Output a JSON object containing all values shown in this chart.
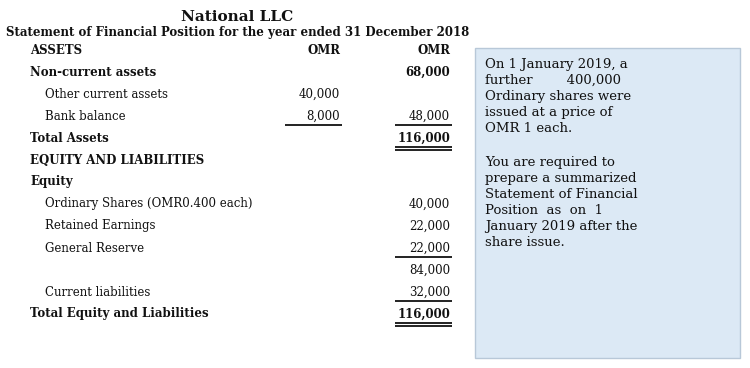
{
  "title": "National LLC",
  "subtitle": "Statement of Financial Position for the year ended 31 December 2018",
  "bg_color": "#ffffff",
  "sidebar_bg": "#dce9f5",
  "sidebar_border": "#b8c8d8",
  "rows": [
    {
      "label": "ASSETS",
      "col1": "OMR",
      "col2": "OMR",
      "bold": true,
      "ul1": false,
      "ul2": false,
      "double2": false,
      "indent": false
    },
    {
      "label": "Non-current assets",
      "col1": "",
      "col2": "68,000",
      "bold": true,
      "ul1": false,
      "ul2": false,
      "double2": false,
      "indent": false
    },
    {
      "label": "Other current assets",
      "col1": "40,000",
      "col2": "",
      "bold": false,
      "ul1": false,
      "ul2": false,
      "double2": false,
      "indent": true
    },
    {
      "label": "Bank balance",
      "col1": "8,000",
      "col2": "48,000",
      "bold": false,
      "ul1": true,
      "ul2": true,
      "double2": false,
      "indent": true
    },
    {
      "label": "Total Assets",
      "col1": "",
      "col2": "116,000",
      "bold": true,
      "ul1": false,
      "ul2": true,
      "double2": true,
      "indent": false
    },
    {
      "label": "EQUITY AND LIABILITIES",
      "col1": "",
      "col2": "",
      "bold": true,
      "ul1": false,
      "ul2": false,
      "double2": false,
      "indent": false
    },
    {
      "label": "Equity",
      "col1": "",
      "col2": "",
      "bold": true,
      "ul1": false,
      "ul2": false,
      "double2": false,
      "indent": false
    },
    {
      "label": "Ordinary Shares (OMR0.400 each)",
      "col1": "",
      "col2": "40,000",
      "bold": false,
      "ul1": false,
      "ul2": false,
      "double2": false,
      "indent": true
    },
    {
      "label": "Retained Earnings",
      "col1": "",
      "col2": "22,000",
      "bold": false,
      "ul1": false,
      "ul2": false,
      "double2": false,
      "indent": true
    },
    {
      "label": "General Reserve",
      "col1": "",
      "col2": "22,000",
      "bold": false,
      "ul1": false,
      "ul2": true,
      "double2": false,
      "indent": true
    },
    {
      "label": "",
      "col1": "",
      "col2": "84,000",
      "bold": false,
      "ul1": false,
      "ul2": false,
      "double2": false,
      "indent": false
    },
    {
      "label": "Current liabilities",
      "col1": "",
      "col2": "32,000",
      "bold": false,
      "ul1": false,
      "ul2": true,
      "double2": false,
      "indent": true
    },
    {
      "label": "Total Equity and Liabilities",
      "col1": "",
      "col2": "116,000",
      "bold": true,
      "ul1": false,
      "ul2": true,
      "double2": true,
      "indent": false
    }
  ],
  "text_color": "#111111",
  "fontsize_title": 11,
  "fontsize_subtitle": 8.5,
  "fontsize_body": 8.5,
  "sidebar_text1_lines": [
    "On 1 January 2019, a",
    "further        400,000",
    "Ordinary shares were",
    "issued at a price of",
    "OMR 1 each."
  ],
  "sidebar_text2_lines": [
    "You are required to",
    "prepare a summarized",
    "Statement of Financial",
    "Position  as  on  1",
    "January 2019 after the",
    "share issue."
  ]
}
